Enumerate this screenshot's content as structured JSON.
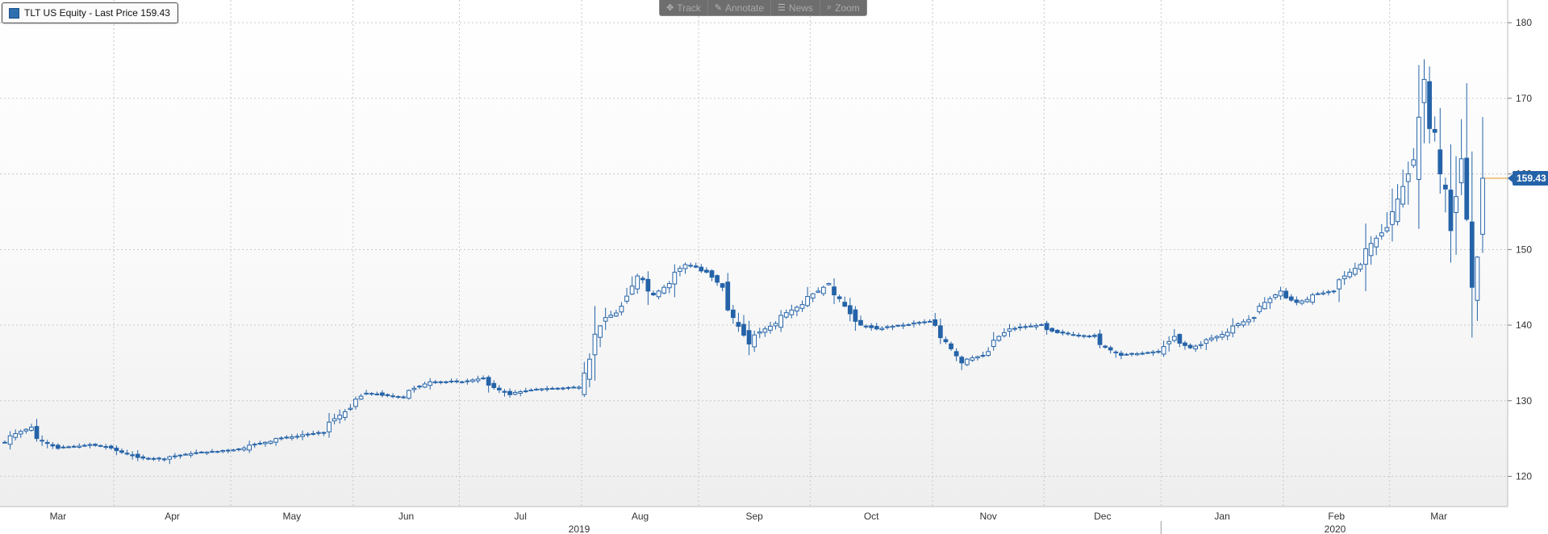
{
  "legend": {
    "label": "TLT US Equity - Last Price 159.43",
    "color": "#2e6fb0"
  },
  "toolbar": [
    {
      "label": "Track",
      "icon": "move-icon",
      "glyph": "✥"
    },
    {
      "label": "Annotate",
      "icon": "pencil-icon",
      "glyph": "✎"
    },
    {
      "label": "News",
      "icon": "news-icon",
      "glyph": "☰"
    },
    {
      "label": "Zoom",
      "icon": "magnifier-icon",
      "glyph": "⌕"
    }
  ],
  "last_price_label": "159.43",
  "colors": {
    "candle": "#2563a8",
    "up_fill": "#ffffff",
    "grid": "#c8c8c8",
    "last_line": "#e8a33a"
  },
  "chart_data": {
    "type": "candlestick",
    "series_name": "TLT US Equity",
    "y_range": [
      116,
      183
    ],
    "y_ticks": [
      120,
      130,
      140,
      150,
      160,
      170,
      180
    ],
    "month_labels": [
      "Mar",
      "Apr",
      "May",
      "Jun",
      "Jul",
      "Aug",
      "Sep",
      "Oct",
      "Nov",
      "Dec",
      "Jan",
      "Feb",
      "Mar"
    ],
    "year_labels": [
      "2019",
      "2020"
    ],
    "last_price": 159.43,
    "grid": true,
    "close_anchors": [
      [
        "2019-03-01",
        124.5
      ],
      [
        "2019-03-08",
        126.5
      ],
      [
        "2019-03-11",
        125.0
      ],
      [
        "2019-03-15",
        123.7
      ],
      [
        "2019-03-25",
        124.2
      ],
      [
        "2019-04-01",
        123.4
      ],
      [
        "2019-04-05",
        122.5
      ],
      [
        "2019-04-12",
        122.3
      ],
      [
        "2019-04-19",
        123.0
      ],
      [
        "2019-05-01",
        123.5
      ],
      [
        "2019-05-13",
        125.0
      ],
      [
        "2019-05-24",
        125.8
      ],
      [
        "2019-05-31",
        129.0
      ],
      [
        "2019-06-05",
        131.0
      ],
      [
        "2019-06-14",
        130.5
      ],
      [
        "2019-06-21",
        132.5
      ],
      [
        "2019-07-01",
        132.5
      ],
      [
        "2019-07-05",
        133.0
      ],
      [
        "2019-07-12",
        130.8
      ],
      [
        "2019-07-19",
        131.5
      ],
      [
        "2019-07-31",
        131.8
      ],
      [
        "2019-08-02",
        135.5
      ],
      [
        "2019-08-07",
        141.0
      ],
      [
        "2019-08-12",
        142.5
      ],
      [
        "2019-08-15",
        146.5
      ],
      [
        "2019-08-20",
        144.0
      ],
      [
        "2019-08-28",
        148.0
      ],
      [
        "2019-09-03",
        147.0
      ],
      [
        "2019-09-06",
        145.0
      ],
      [
        "2019-09-10",
        141.0
      ],
      [
        "2019-09-13",
        137.5
      ],
      [
        "2019-09-18",
        139.5
      ],
      [
        "2019-09-25",
        142.0
      ],
      [
        "2019-10-02",
        144.5
      ],
      [
        "2019-10-04",
        145.5
      ],
      [
        "2019-10-08",
        143.5
      ],
      [
        "2019-10-11",
        140.5
      ],
      [
        "2019-10-17",
        139.5
      ],
      [
        "2019-10-24",
        140.0
      ],
      [
        "2019-10-31",
        140.5
      ],
      [
        "2019-11-05",
        137.8
      ],
      [
        "2019-11-08",
        135.0
      ],
      [
        "2019-11-14",
        136.0
      ],
      [
        "2019-11-21",
        139.5
      ],
      [
        "2019-11-29",
        140.0
      ],
      [
        "2019-12-04",
        139.0
      ],
      [
        "2019-12-13",
        138.5
      ],
      [
        "2019-12-20",
        136.0
      ],
      [
        "2019-12-31",
        136.5
      ],
      [
        "2020-01-03",
        138.5
      ],
      [
        "2020-01-08",
        137.0
      ],
      [
        "2020-01-15",
        138.5
      ],
      [
        "2020-01-24",
        141.0
      ],
      [
        "2020-01-31",
        144.5
      ],
      [
        "2020-02-05",
        143.0
      ],
      [
        "2020-02-10",
        144.0
      ],
      [
        "2020-02-14",
        144.5
      ],
      [
        "2020-02-21",
        148.0
      ],
      [
        "2020-02-26",
        151.5
      ],
      [
        "2020-03-02",
        155.0
      ],
      [
        "2020-03-05",
        160.0
      ],
      [
        "2020-03-09",
        167.5
      ],
      [
        "2020-03-10",
        172.5
      ],
      [
        "2020-03-11",
        166.0
      ],
      [
        "2020-03-12",
        165.5
      ],
      [
        "2020-03-13",
        160.0
      ],
      [
        "2020-03-16",
        158.0
      ],
      [
        "2020-03-17",
        152.5
      ],
      [
        "2020-03-18",
        157.0
      ],
      [
        "2020-03-19",
        162.0
      ],
      [
        "2020-03-20",
        154.0
      ],
      [
        "2020-03-23",
        145.0
      ],
      [
        "2020-03-24",
        149.0
      ],
      [
        "2020-03-25",
        159.43
      ]
    ]
  }
}
